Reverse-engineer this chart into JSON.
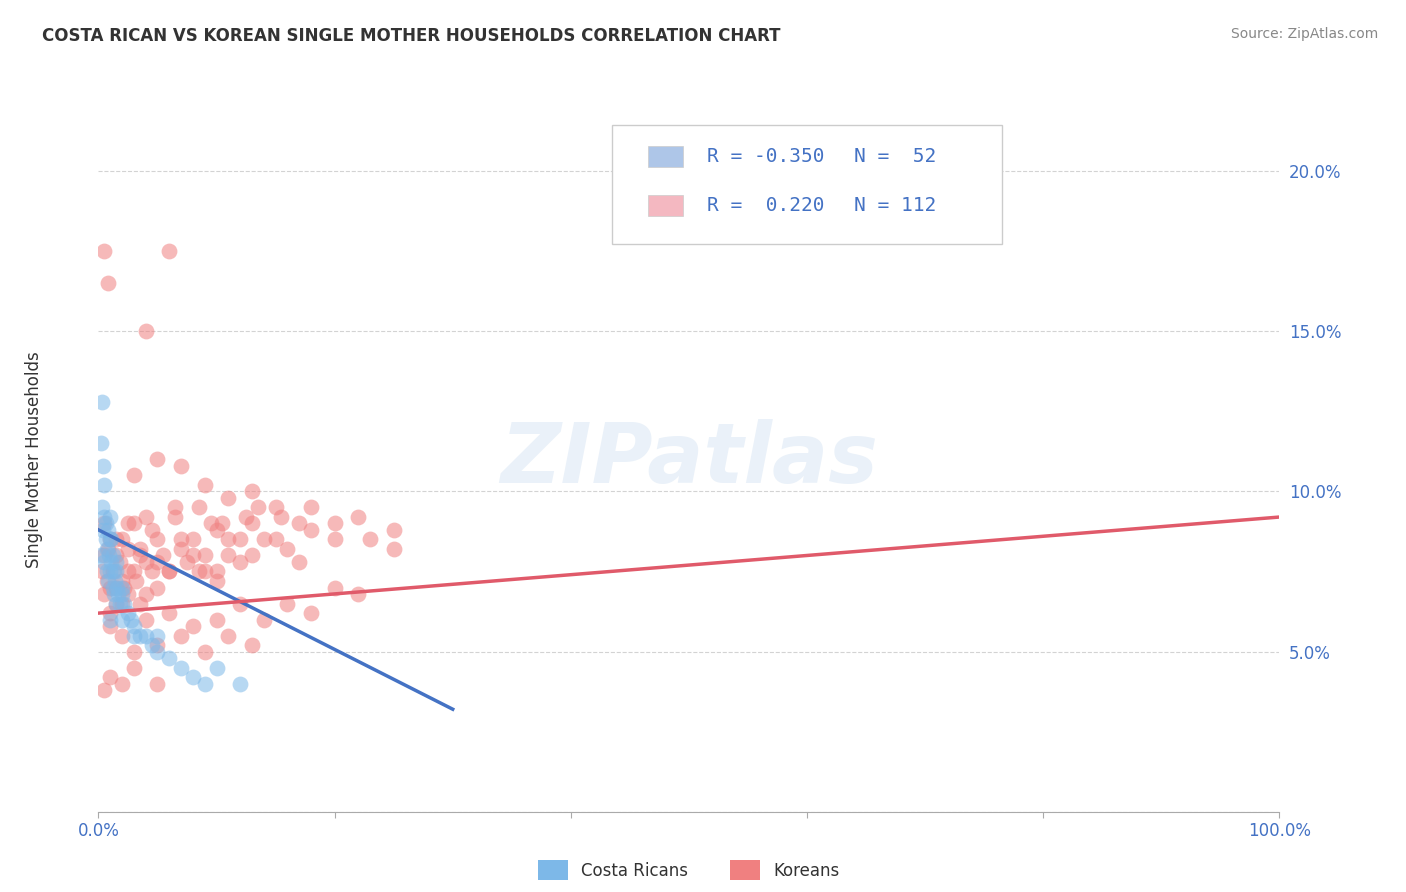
{
  "title": "COSTA RICAN VS KOREAN SINGLE MOTHER HOUSEHOLDS CORRELATION CHART",
  "source": "Source: ZipAtlas.com",
  "ylabel": "Single Mother Households",
  "legend_entry1_color": "#aec6e8",
  "legend_entry2_color": "#f4b8c1",
  "cr_color": "#7db8e8",
  "kr_color": "#f08080",
  "cr_line_color": "#4472c4",
  "kr_line_color": "#e05a6a",
  "axis_tick_color": "#4472c4",
  "background_color": "#ffffff",
  "grid_color": "#c8c8c8",
  "watermark": "ZIPatlas",
  "cr_label": "Costa Ricans",
  "kr_label": "Koreans",
  "cr_R": -0.35,
  "cr_N": 52,
  "kr_R": 0.22,
  "kr_N": 112,
  "xlim": [
    0,
    100
  ],
  "ylim": [
    0,
    22
  ],
  "xtick_positions": [
    0,
    20,
    40,
    60,
    80,
    100
  ],
  "xticklabels": [
    "0.0%",
    "",
    "",
    "",
    "",
    "100.0%"
  ],
  "ytick_positions": [
    0,
    5,
    10,
    15,
    20
  ],
  "yticklabels_right": [
    "",
    "5.0%",
    "10.0%",
    "15.0%",
    "20.0%"
  ],
  "cr_scatter": [
    [
      0.2,
      8.0
    ],
    [
      0.3,
      9.5
    ],
    [
      0.4,
      8.8
    ],
    [
      0.5,
      9.2
    ],
    [
      0.5,
      7.8
    ],
    [
      0.6,
      8.5
    ],
    [
      0.6,
      9.0
    ],
    [
      0.7,
      8.2
    ],
    [
      0.7,
      7.5
    ],
    [
      0.8,
      8.8
    ],
    [
      0.8,
      7.2
    ],
    [
      0.9,
      8.0
    ],
    [
      1.0,
      8.5
    ],
    [
      1.0,
      7.5
    ],
    [
      1.0,
      9.2
    ],
    [
      1.1,
      7.8
    ],
    [
      1.1,
      8.5
    ],
    [
      1.2,
      7.0
    ],
    [
      1.2,
      8.0
    ],
    [
      1.3,
      7.5
    ],
    [
      1.3,
      6.8
    ],
    [
      1.4,
      7.2
    ],
    [
      1.5,
      7.5
    ],
    [
      1.5,
      6.5
    ],
    [
      1.6,
      7.0
    ],
    [
      1.7,
      6.8
    ],
    [
      1.8,
      6.5
    ],
    [
      2.0,
      7.0
    ],
    [
      2.0,
      6.0
    ],
    [
      2.2,
      6.5
    ],
    [
      2.5,
      6.2
    ],
    [
      2.8,
      6.0
    ],
    [
      3.0,
      5.8
    ],
    [
      3.5,
      5.5
    ],
    [
      4.0,
      5.5
    ],
    [
      4.5,
      5.2
    ],
    [
      5.0,
      5.0
    ],
    [
      6.0,
      4.8
    ],
    [
      7.0,
      4.5
    ],
    [
      8.0,
      4.2
    ],
    [
      9.0,
      4.0
    ],
    [
      10.0,
      4.5
    ],
    [
      12.0,
      4.0
    ],
    [
      0.3,
      12.8
    ],
    [
      0.4,
      10.8
    ],
    [
      0.5,
      10.2
    ],
    [
      1.5,
      7.8
    ],
    [
      2.0,
      6.8
    ],
    [
      3.0,
      5.5
    ],
    [
      5.0,
      5.5
    ],
    [
      0.2,
      11.5
    ],
    [
      1.0,
      6.0
    ]
  ],
  "kr_scatter": [
    [
      0.3,
      7.5
    ],
    [
      0.5,
      6.8
    ],
    [
      0.5,
      9.0
    ],
    [
      0.7,
      7.2
    ],
    [
      0.8,
      8.2
    ],
    [
      1.0,
      7.0
    ],
    [
      1.0,
      8.5
    ],
    [
      1.2,
      7.5
    ],
    [
      1.5,
      8.0
    ],
    [
      1.5,
      6.5
    ],
    [
      1.8,
      7.8
    ],
    [
      2.0,
      7.2
    ],
    [
      2.0,
      8.5
    ],
    [
      2.2,
      7.0
    ],
    [
      2.5,
      8.2
    ],
    [
      2.5,
      6.8
    ],
    [
      3.0,
      7.5
    ],
    [
      3.0,
      9.0
    ],
    [
      3.2,
      7.2
    ],
    [
      3.5,
      8.0
    ],
    [
      3.5,
      6.5
    ],
    [
      4.0,
      7.8
    ],
    [
      4.0,
      9.2
    ],
    [
      4.5,
      7.5
    ],
    [
      5.0,
      8.5
    ],
    [
      5.0,
      7.0
    ],
    [
      5.5,
      8.0
    ],
    [
      6.0,
      7.5
    ],
    [
      6.5,
      9.5
    ],
    [
      7.0,
      8.2
    ],
    [
      7.5,
      7.8
    ],
    [
      8.0,
      8.5
    ],
    [
      8.5,
      7.5
    ],
    [
      9.0,
      8.0
    ],
    [
      9.5,
      9.0
    ],
    [
      10.0,
      7.5
    ],
    [
      10.0,
      8.8
    ],
    [
      11.0,
      8.5
    ],
    [
      12.0,
      7.8
    ],
    [
      12.5,
      9.2
    ],
    [
      13.0,
      8.0
    ],
    [
      14.0,
      8.5
    ],
    [
      15.0,
      9.5
    ],
    [
      16.0,
      8.2
    ],
    [
      17.0,
      9.0
    ],
    [
      18.0,
      8.8
    ],
    [
      20.0,
      8.5
    ],
    [
      22.0,
      9.2
    ],
    [
      25.0,
      8.8
    ],
    [
      25.0,
      8.2
    ],
    [
      1.5,
      7.0
    ],
    [
      2.5,
      7.5
    ],
    [
      3.5,
      8.2
    ],
    [
      5.0,
      7.8
    ],
    [
      7.0,
      8.5
    ],
    [
      9.0,
      7.5
    ],
    [
      11.0,
      8.0
    ],
    [
      13.0,
      9.0
    ],
    [
      15.0,
      8.5
    ],
    [
      17.0,
      7.8
    ],
    [
      20.0,
      9.0
    ],
    [
      23.0,
      8.5
    ],
    [
      4.0,
      6.8
    ],
    [
      6.0,
      7.5
    ],
    [
      8.0,
      8.0
    ],
    [
      10.0,
      7.2
    ],
    [
      12.0,
      8.5
    ],
    [
      3.0,
      10.5
    ],
    [
      5.0,
      11.0
    ],
    [
      7.0,
      10.8
    ],
    [
      9.0,
      10.2
    ],
    [
      11.0,
      9.8
    ],
    [
      13.0,
      10.0
    ],
    [
      1.0,
      6.2
    ],
    [
      2.0,
      6.5
    ],
    [
      4.0,
      6.0
    ],
    [
      6.0,
      6.2
    ],
    [
      8.0,
      5.8
    ],
    [
      10.0,
      6.0
    ],
    [
      12.0,
      6.5
    ],
    [
      14.0,
      6.0
    ],
    [
      16.0,
      6.5
    ],
    [
      18.0,
      6.2
    ],
    [
      20.0,
      7.0
    ],
    [
      22.0,
      6.8
    ],
    [
      0.5,
      8.0
    ],
    [
      1.5,
      8.5
    ],
    [
      2.5,
      9.0
    ],
    [
      4.5,
      8.8
    ],
    [
      6.5,
      9.2
    ],
    [
      8.5,
      9.5
    ],
    [
      10.5,
      9.0
    ],
    [
      13.5,
      9.5
    ],
    [
      15.5,
      9.2
    ],
    [
      18.0,
      9.5
    ],
    [
      0.5,
      17.5
    ],
    [
      0.8,
      16.5
    ],
    [
      6.0,
      17.5
    ],
    [
      4.0,
      15.0
    ],
    [
      1.0,
      5.8
    ],
    [
      2.0,
      5.5
    ],
    [
      3.0,
      5.0
    ],
    [
      5.0,
      5.2
    ],
    [
      7.0,
      5.5
    ],
    [
      9.0,
      5.0
    ],
    [
      11.0,
      5.5
    ],
    [
      13.0,
      5.2
    ],
    [
      0.5,
      3.8
    ],
    [
      1.0,
      4.2
    ],
    [
      2.0,
      4.0
    ],
    [
      3.0,
      4.5
    ],
    [
      5.0,
      4.0
    ]
  ],
  "kr_line_x": [
    0,
    100
  ],
  "kr_line_y": [
    6.2,
    9.2
  ],
  "cr_line_x": [
    0,
    30
  ],
  "cr_line_y": [
    8.8,
    3.2
  ]
}
